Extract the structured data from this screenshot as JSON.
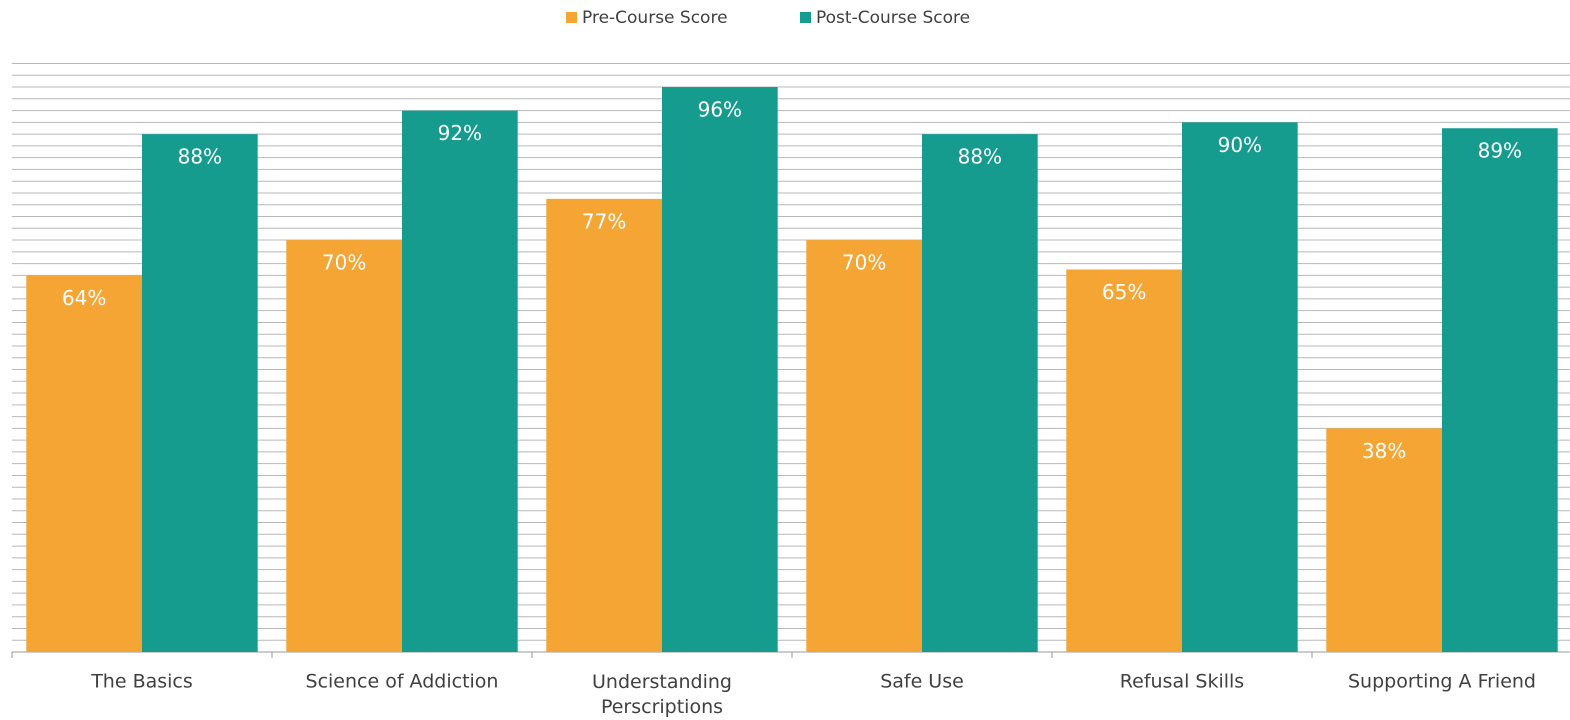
{
  "chart_data": {
    "type": "bar",
    "categories": [
      "The Basics",
      "Science of Addiction",
      "Understanding Perscriptions",
      "Safe Use",
      "Refusal Skills",
      "Supporting A Friend"
    ],
    "series": [
      {
        "name": "Pre-Course Score",
        "color": "#f5a533",
        "values": [
          64,
          70,
          77,
          70,
          65,
          38
        ],
        "value_labels": [
          "64%",
          "70%",
          "77%",
          "70%",
          "65%",
          "38%"
        ]
      },
      {
        "name": "Post-Course Score",
        "color": "#169c8e",
        "values": [
          88,
          92,
          96,
          88,
          90,
          89
        ],
        "value_labels": [
          "88%",
          "92%",
          "96%",
          "88%",
          "90%",
          "89%"
        ]
      }
    ],
    "ylim": [
      0,
      100
    ],
    "yticks": [
      0,
      2,
      4,
      6,
      8,
      10,
      12,
      14,
      16,
      18,
      20,
      22,
      24,
      26,
      28,
      30,
      32,
      34,
      36,
      38,
      40,
      42,
      44,
      46,
      48,
      50,
      52,
      54,
      56,
      58,
      60,
      62,
      64,
      66,
      68,
      70,
      72,
      74,
      76,
      78,
      80,
      82,
      84,
      86,
      88,
      90,
      92,
      94,
      96,
      98,
      100
    ],
    "grid": true
  }
}
